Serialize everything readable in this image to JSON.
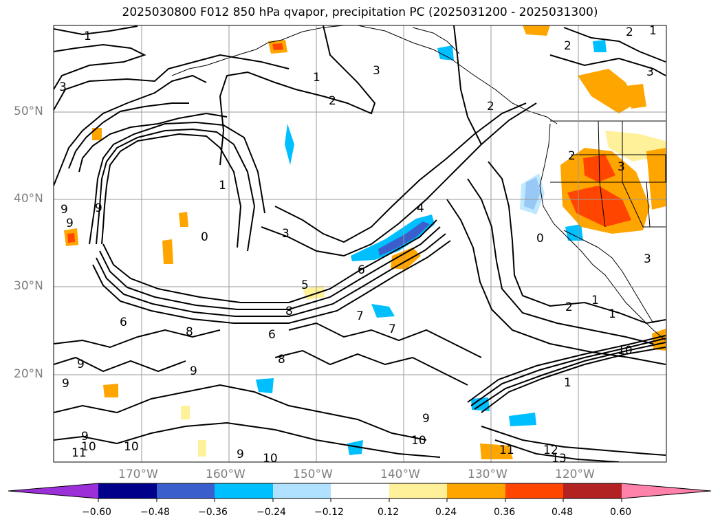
{
  "title": "2025030800 F012 850 hPa qvapor, precipitation PC (2025031200 - 2025031300)",
  "map": {
    "lat_labels": [
      "50°N",
      "40°N",
      "30°N",
      "20°N"
    ],
    "lon_labels": [
      "170°W",
      "160°W",
      "150°W",
      "140°W",
      "130°W",
      "120°W"
    ],
    "grid": true,
    "contour_color": "#000000",
    "contour_labels": [
      "1",
      "2",
      "2",
      "3",
      "3",
      "1",
      "2",
      "2",
      "3",
      "1",
      "3",
      "9",
      "9",
      "9",
      "0",
      "3",
      "4",
      "5",
      "6",
      "6",
      "7",
      "7",
      "8",
      "8",
      "8",
      "9",
      "9",
      "9",
      "6",
      "0",
      "2",
      "1",
      "1",
      "10",
      "10",
      "11",
      "10",
      "9",
      "10",
      "9",
      "9",
      "10",
      "11",
      "12",
      "13",
      "1",
      "3",
      "2",
      "1"
    ]
  },
  "colorbar": {
    "ticks": [
      "−0.60",
      "−0.48",
      "−0.36",
      "−0.24",
      "−0.12",
      "0.12",
      "0.24",
      "0.36",
      "0.48",
      "0.60"
    ],
    "colors": [
      "#9b30d9",
      "#00008b",
      "#3a5fcd",
      "#00bfff",
      "#b0e2ff",
      "#ffffff",
      "#fff09a",
      "#ffa500",
      "#ff4500",
      "#b22222",
      "#ff82ab"
    ]
  }
}
